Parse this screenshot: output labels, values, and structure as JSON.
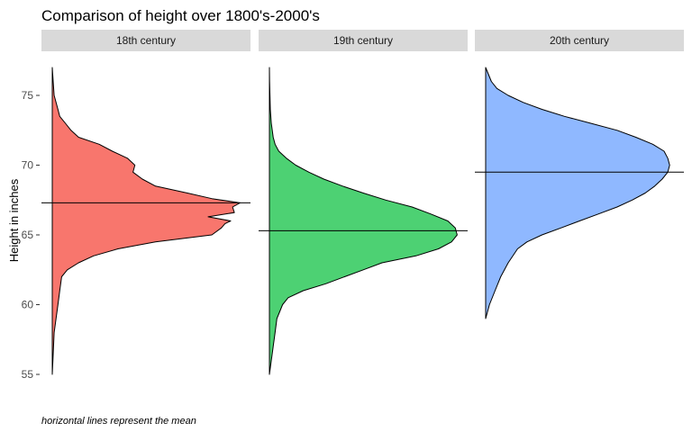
{
  "chart_data": {
    "type": "area",
    "subtype": "half-violin density (faceted)",
    "title": "Comparison of height over 1800's-2000's",
    "xlabel": "",
    "ylabel": "Height in inches",
    "ylim": [
      55,
      77
    ],
    "yticks": [
      55,
      60,
      65,
      70,
      75
    ],
    "grid": false,
    "legend": "none",
    "caption": "horizontal lines represent the mean",
    "facets": [
      {
        "label": "18th century",
        "color": "#F8766D",
        "mean": 67.3,
        "y": [
          55,
          58,
          59,
          60,
          61,
          62,
          62.5,
          63,
          63.5,
          64,
          64.5,
          65,
          65.5,
          65.8,
          66,
          66.3,
          66.6,
          67,
          67.3,
          67.6,
          68,
          68.5,
          69,
          69.5,
          70,
          70.5,
          71,
          71.5,
          72,
          72.5,
          73,
          73.5,
          74,
          75,
          76,
          77
        ],
        "density": [
          0,
          0.01,
          0.02,
          0.03,
          0.04,
          0.05,
          0.08,
          0.14,
          0.22,
          0.35,
          0.55,
          0.85,
          0.9,
          0.92,
          0.95,
          0.83,
          0.97,
          0.96,
          1.0,
          0.85,
          0.72,
          0.55,
          0.48,
          0.43,
          0.44,
          0.4,
          0.32,
          0.25,
          0.14,
          0.1,
          0.07,
          0.04,
          0.03,
          0.01,
          0.005,
          0
        ]
      },
      {
        "label": "19th century",
        "color": "#4DD173",
        "mean": 65.3,
        "y": [
          55,
          56,
          57,
          58,
          59,
          60,
          60.5,
          61,
          61.5,
          62,
          62.5,
          63,
          63.5,
          64,
          64.5,
          65,
          65.5,
          66,
          66.5,
          67,
          67.5,
          68,
          68.5,
          69,
          69.5,
          70,
          70.5,
          71,
          71.5,
          72,
          73,
          74,
          75,
          76,
          77
        ],
        "density": [
          0,
          0.01,
          0.02,
          0.03,
          0.04,
          0.07,
          0.1,
          0.18,
          0.3,
          0.4,
          0.5,
          0.6,
          0.78,
          0.9,
          0.97,
          1.0,
          0.99,
          0.95,
          0.86,
          0.76,
          0.62,
          0.5,
          0.39,
          0.29,
          0.21,
          0.14,
          0.09,
          0.05,
          0.03,
          0.02,
          0.01,
          0.005,
          0.003,
          0.001,
          0
        ]
      },
      {
        "label": "20th century",
        "color": "#8FB8FF",
        "mean": 69.5,
        "y": [
          59,
          60,
          61,
          62,
          63,
          64,
          64.5,
          65,
          65.5,
          66,
          66.5,
          67,
          67.5,
          68,
          68.5,
          69,
          69.5,
          70,
          70.5,
          71,
          71.5,
          72,
          72.5,
          73,
          73.5,
          74,
          74.5,
          75,
          75.5,
          76,
          77
        ],
        "density": [
          0,
          0.02,
          0.05,
          0.08,
          0.12,
          0.17,
          0.22,
          0.3,
          0.4,
          0.5,
          0.6,
          0.7,
          0.78,
          0.85,
          0.9,
          0.94,
          0.97,
          0.98,
          0.97,
          0.95,
          0.89,
          0.8,
          0.7,
          0.56,
          0.42,
          0.3,
          0.2,
          0.12,
          0.06,
          0.03,
          0
        ]
      }
    ]
  }
}
